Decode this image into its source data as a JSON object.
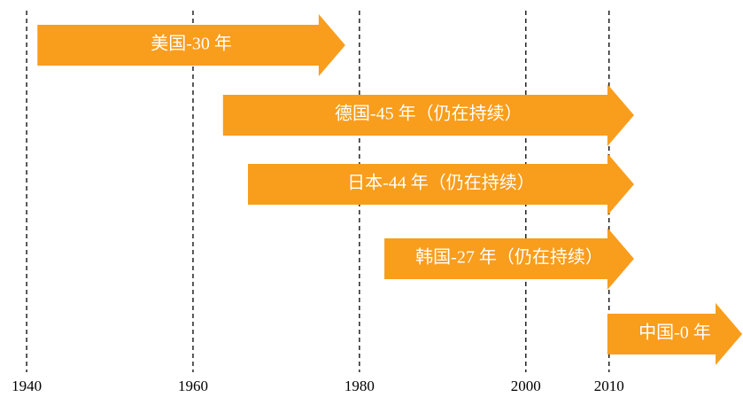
{
  "chart_data": {
    "type": "timeline",
    "bars": [
      {
        "label": "美国-30 年",
        "start": 1941.3,
        "end": 1978.3
      },
      {
        "label": "德国-45 年（仍在持续）",
        "start": 1963.6,
        "end": 2013
      },
      {
        "label": "日本-44 年（仍在持续）",
        "start": 1966.6,
        "end": 2013
      },
      {
        "label": "韩国-27 年（仍在持续）",
        "start": 1983,
        "end": 2013
      },
      {
        "label": "中国-0 年",
        "start": 2009.8,
        "end": 2026
      }
    ],
    "color": "#f99d1c",
    "xlim": [
      1936.8,
      2026.1
    ],
    "xticks": [
      1940,
      1960,
      1980,
      2000,
      2010
    ],
    "grid": true
  }
}
